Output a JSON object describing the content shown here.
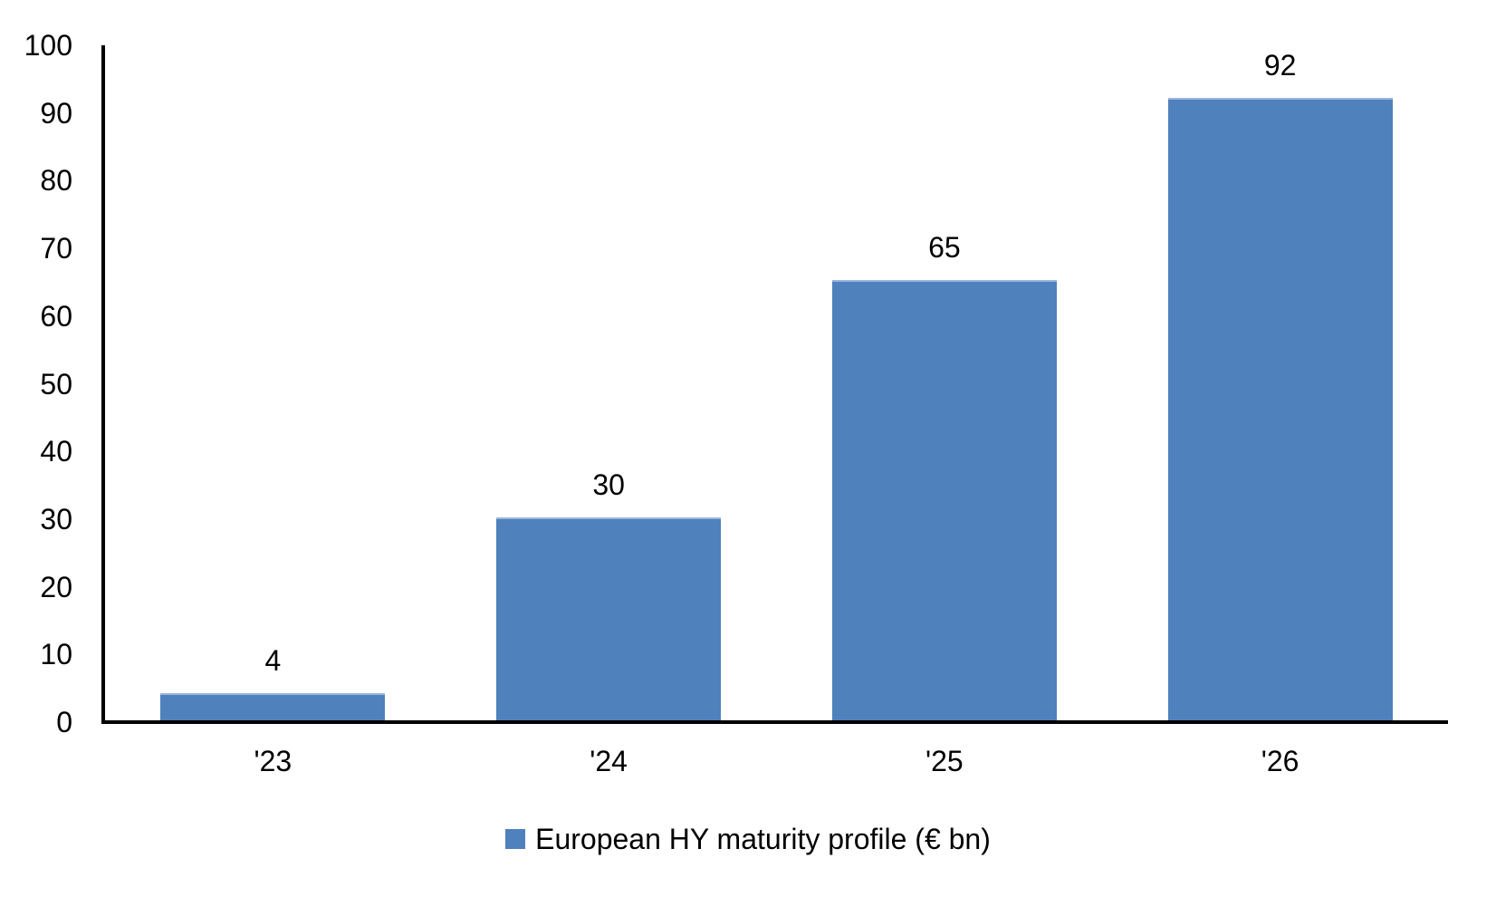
{
  "chart_data": {
    "type": "bar",
    "categories": [
      "'23",
      "'24",
      "'25",
      "'26"
    ],
    "values": [
      4,
      30,
      65,
      92
    ],
    "data_labels": [
      4,
      30,
      65,
      92
    ],
    "title": "",
    "xlabel": "",
    "ylabel": "",
    "ylim": [
      0,
      100
    ],
    "yticks": [
      0,
      10,
      20,
      30,
      40,
      50,
      60,
      70,
      80,
      90,
      100
    ],
    "grid": false,
    "legend_position": "bottom",
    "series_name": "European HY maturity profile (€ bn)",
    "bar_color": "#4F81BD",
    "bar_border_color": "#9DB7DB",
    "axis_color": "#000000",
    "text_color": "#000000"
  },
  "legend": {
    "label": "European HY maturity profile (€ bn)",
    "swatch_color": "#4F81BD"
  }
}
